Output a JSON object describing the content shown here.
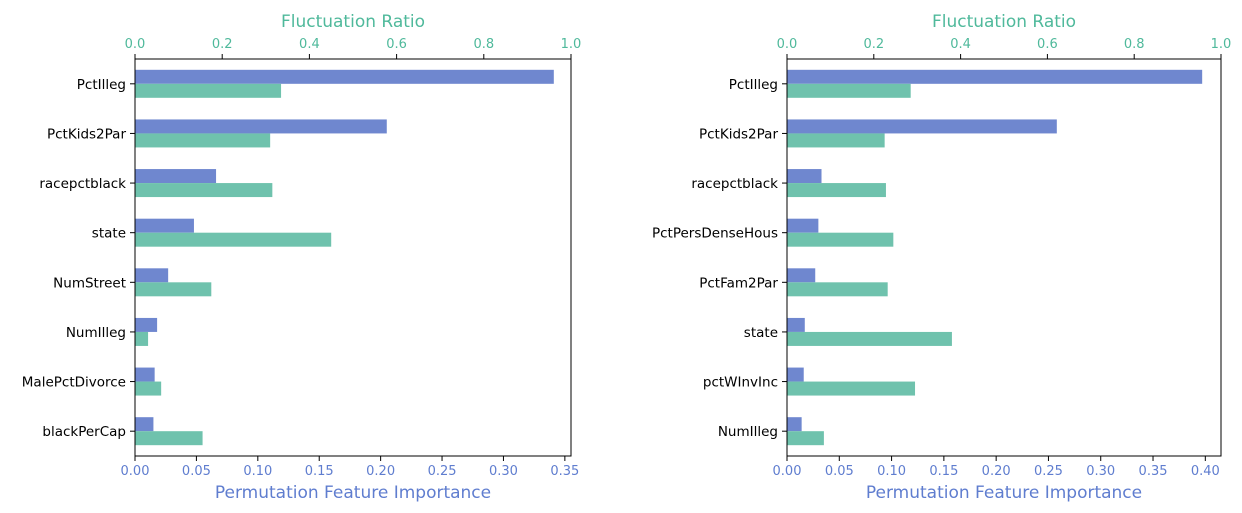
{
  "colors": {
    "pfi": "#6f87cf",
    "fluctuation": "#6fc2ad",
    "pfi_label": "#5f7dcf",
    "fluctuation_label": "#4fb99b",
    "axis": "#000000",
    "text": "#000000"
  },
  "chart_data": [
    {
      "type": "bar",
      "orientation": "horizontal",
      "xlabel": "Permutation Feature Importance",
      "x2label": "Fluctuation Ratio",
      "xlim": [
        0,
        0.355
      ],
      "x2lim": [
        0,
        1.0
      ],
      "xticks": [
        "0.00",
        "0.05",
        "0.10",
        "0.15",
        "0.20",
        "0.25",
        "0.30",
        "0.35"
      ],
      "x2ticks": [
        "0.0",
        "0.2",
        "0.4",
        "0.6",
        "0.8",
        "1.0"
      ],
      "categories": [
        "PctIlleg",
        "PctKids2Par",
        "racepctblack",
        "state",
        "NumStreet",
        "NumIlleg",
        "MalePctDivorce",
        "blackPerCap"
      ],
      "series": [
        {
          "axis": "bottom",
          "values": [
            0.341,
            0.205,
            0.066,
            0.048,
            0.027,
            0.018,
            0.016,
            0.015
          ]
        },
        {
          "axis": "top",
          "values": [
            0.335,
            0.31,
            0.315,
            0.45,
            0.175,
            0.03,
            0.06,
            0.155
          ]
        }
      ],
      "grid": false
    },
    {
      "type": "bar",
      "orientation": "horizontal",
      "xlabel": "Permutation Feature Importance",
      "x2label": "Fluctuation Ratio",
      "xlim": [
        0,
        0.415
      ],
      "x2lim": [
        0,
        1.0
      ],
      "xticks": [
        "0.00",
        "0.05",
        "0.10",
        "0.15",
        "0.20",
        "0.25",
        "0.30",
        "0.35",
        "0.40"
      ],
      "x2ticks": [
        "0.0",
        "0.2",
        "0.4",
        "0.6",
        "0.8",
        "1.0"
      ],
      "categories": [
        "PctIlleg",
        "PctKids2Par",
        "racepctblack",
        "PctPersDenseHous",
        "PctFam2Par",
        "state",
        "pctWInvInc",
        "NumIlleg"
      ],
      "series": [
        {
          "axis": "bottom",
          "values": [
            0.397,
            0.258,
            0.033,
            0.03,
            0.027,
            0.017,
            0.016,
            0.014
          ]
        },
        {
          "axis": "top",
          "values": [
            0.285,
            0.225,
            0.228,
            0.245,
            0.232,
            0.38,
            0.295,
            0.085
          ]
        }
      ],
      "grid": false
    }
  ]
}
